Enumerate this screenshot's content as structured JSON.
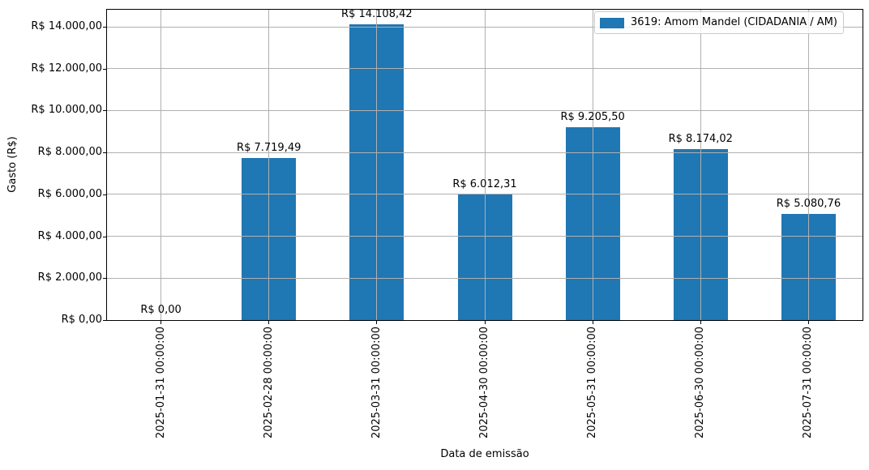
{
  "chart_data": {
    "type": "bar",
    "title": "",
    "xlabel": "Data de emissão",
    "ylabel": "Gasto (R$)",
    "categories": [
      "2025-01-31 00:00:00",
      "2025-02-28 00:00:00",
      "2025-03-31 00:00:00",
      "2025-04-30 00:00:00",
      "2025-05-31 00:00:00",
      "2025-06-30 00:00:00",
      "2025-07-31 00:00:00"
    ],
    "series": [
      {
        "name": "3619: Amom Mandel (CIDADANIA / AM)",
        "values": [
          0,
          7719.49,
          14108.42,
          6012.31,
          9205.5,
          8174.02,
          5080.76
        ],
        "value_labels": [
          "R$ 0,00",
          "R$ 7.719,49",
          "R$ 14.108,42",
          "R$ 6.012,31",
          "R$ 9.205,50",
          "R$ 8.174,02",
          "R$ 5.080,76"
        ],
        "color": "#1f77b4"
      }
    ],
    "legend": {
      "position": "upper right",
      "entries": [
        "3619: Amom Mandel (CIDADANIA / AM)"
      ]
    },
    "ylim": [
      0,
      14813.84
    ],
    "yticks": [
      0,
      2000,
      4000,
      6000,
      8000,
      10000,
      12000,
      14000
    ],
    "ytick_labels": [
      "R$ 0,00",
      "R$ 2.000,00",
      "R$ 4.000,00",
      "R$ 6.000,00",
      "R$ 8.000,00",
      "R$ 10.000,00",
      "R$ 12.000,00",
      "R$ 14.000,00"
    ],
    "grid": true,
    "grid_color": "#b0b0b0",
    "grid_above_bars": true,
    "x_tick_rotation_deg": 90,
    "axes_background": "#ffffff"
  }
}
